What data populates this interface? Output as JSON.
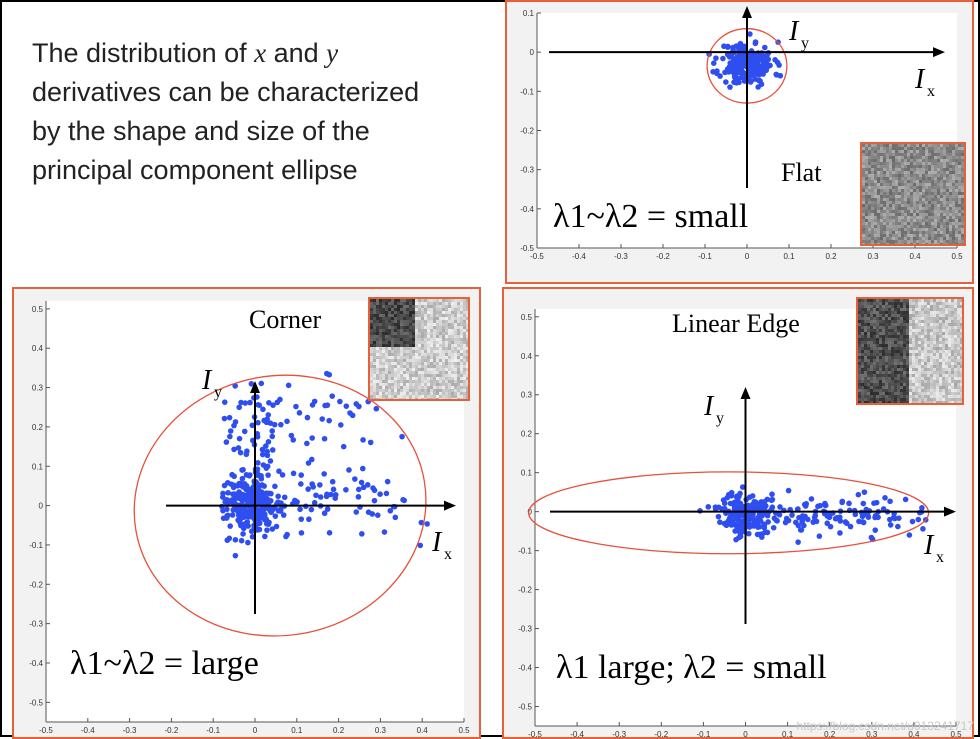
{
  "intro": {
    "line1_pre": "The distribution of ",
    "var_x": "x",
    "line1_mid": " and ",
    "var_y": "y",
    "line2": "derivatives can be characterized",
    "line3": "by the shape and size of the",
    "line4": "principal component ellipse"
  },
  "axis_symbols": {
    "ix_main": "I",
    "ix_sub": "x",
    "iy_main": "I",
    "iy_sub": "y"
  },
  "colors": {
    "points": "#2f4ef0",
    "ellipse": "#e8503a",
    "frame": "#e8603a",
    "plot_bg": "#ffffff",
    "panel_bg": "#f2f2f2"
  },
  "chart_data": [
    {
      "id": "flat",
      "type": "scatter",
      "label": "Flat",
      "caption": "λ1~λ2 = small",
      "xlim": [
        -0.5,
        0.5
      ],
      "ylim": [
        -0.5,
        0.1
      ],
      "xticks": [
        "-0.5",
        "-0.4",
        "-0.3",
        "-0.2",
        "-0.1",
        "0",
        "0.1",
        "0.2",
        "0.3",
        "0.4",
        "0.5"
      ],
      "yticks": [
        "0.1",
        "0",
        "-0.1",
        "-0.2",
        "-0.3",
        "-0.4",
        "-0.5"
      ],
      "ellipse": {
        "cx": 0.0,
        "cy": -0.035,
        "rx": 0.095,
        "ry": 0.095
      },
      "clusters": [
        {
          "n": 200,
          "cx": 0.0,
          "cy": -0.03,
          "sx": 0.032,
          "sy": 0.028
        }
      ],
      "seed": 11,
      "inset": "flat"
    },
    {
      "id": "corner",
      "type": "scatter",
      "label": "Corner",
      "caption": "λ1~λ2 = large",
      "xlim": [
        -0.5,
        0.5
      ],
      "ylim": [
        -0.55,
        0.52
      ],
      "xticks": [
        "-0.5",
        "-0.4",
        "-0.3",
        "-0.2",
        "-0.1",
        "0",
        "0.1",
        "0.2",
        "0.3",
        "0.4",
        "0.5"
      ],
      "yticks": [
        "0.5",
        "0.4",
        "0.3",
        "0.2",
        "0.1",
        "0",
        "-0.1",
        "-0.2",
        "-0.3",
        "-0.4",
        "-0.5"
      ],
      "ellipse": {
        "cx": 0.06,
        "cy": 0.0,
        "rx": 0.35,
        "ry": 0.33,
        "rotate": -10
      },
      "clusters": [
        {
          "n": 260,
          "cx": -0.005,
          "cy": 0.0,
          "sx": 0.032,
          "sy": 0.035
        },
        {
          "n": 70,
          "cx": 0.0,
          "cy": 0.17,
          "sx": 0.04,
          "sy": 0.09
        },
        {
          "n": 60,
          "cx": 0.2,
          "cy": 0.01,
          "sx": 0.1,
          "sy": 0.04
        },
        {
          "n": 45,
          "cx": 0.12,
          "cy": 0.2,
          "sx": 0.1,
          "sy": 0.07
        }
      ],
      "seed": 23,
      "inset": "corner"
    },
    {
      "id": "edge",
      "type": "scatter",
      "label": "Linear Edge",
      "caption": "λ1 large; λ2 = small",
      "xlim": [
        -0.5,
        0.5
      ],
      "ylim": [
        -0.55,
        0.52
      ],
      "xticks": [
        "-0.5",
        "-0.4",
        "-0.3",
        "-0.2",
        "-0.1",
        "0",
        "0.1",
        "0.2",
        "0.3",
        "0.4",
        "0.5"
      ],
      "yticks": [
        "0.5",
        "0.4",
        "0.3",
        "0.2",
        "0.1",
        "0",
        "-0.1",
        "-0.2",
        "-0.3",
        "-0.4",
        "-0.5"
      ],
      "ellipse": {
        "cx": -0.04,
        "cy": -0.003,
        "rx": 0.475,
        "ry": 0.105
      },
      "clusters": [
        {
          "n": 170,
          "cx": 0.0,
          "cy": -0.005,
          "sx": 0.03,
          "sy": 0.028
        },
        {
          "n": 130,
          "cx": 0.22,
          "cy": -0.01,
          "sx": 0.11,
          "sy": 0.03
        }
      ],
      "seed": 37,
      "inset": "edge"
    }
  ],
  "watermark": "https://blog.csdn.net/u013241717"
}
